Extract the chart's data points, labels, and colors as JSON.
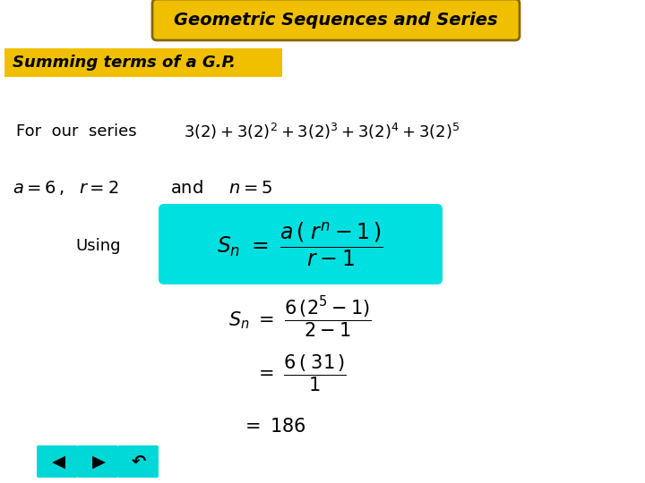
{
  "title": "Geometric Sequences and Series",
  "subtitle": "Summing terms of a G.P.",
  "bg_color": "#ffffff",
  "title_bg": "#f0c000",
  "title_border": "#886600",
  "subtitle_bg": "#f0c000",
  "formula_bg": "#00e0e0",
  "nav_bg": "#00d8d8",
  "text_dark": "#000000",
  "title_fontsize": 14,
  "subtitle_fontsize": 13,
  "body_fontsize": 13,
  "series_fontsize": 13,
  "formula_fontsize": 15
}
